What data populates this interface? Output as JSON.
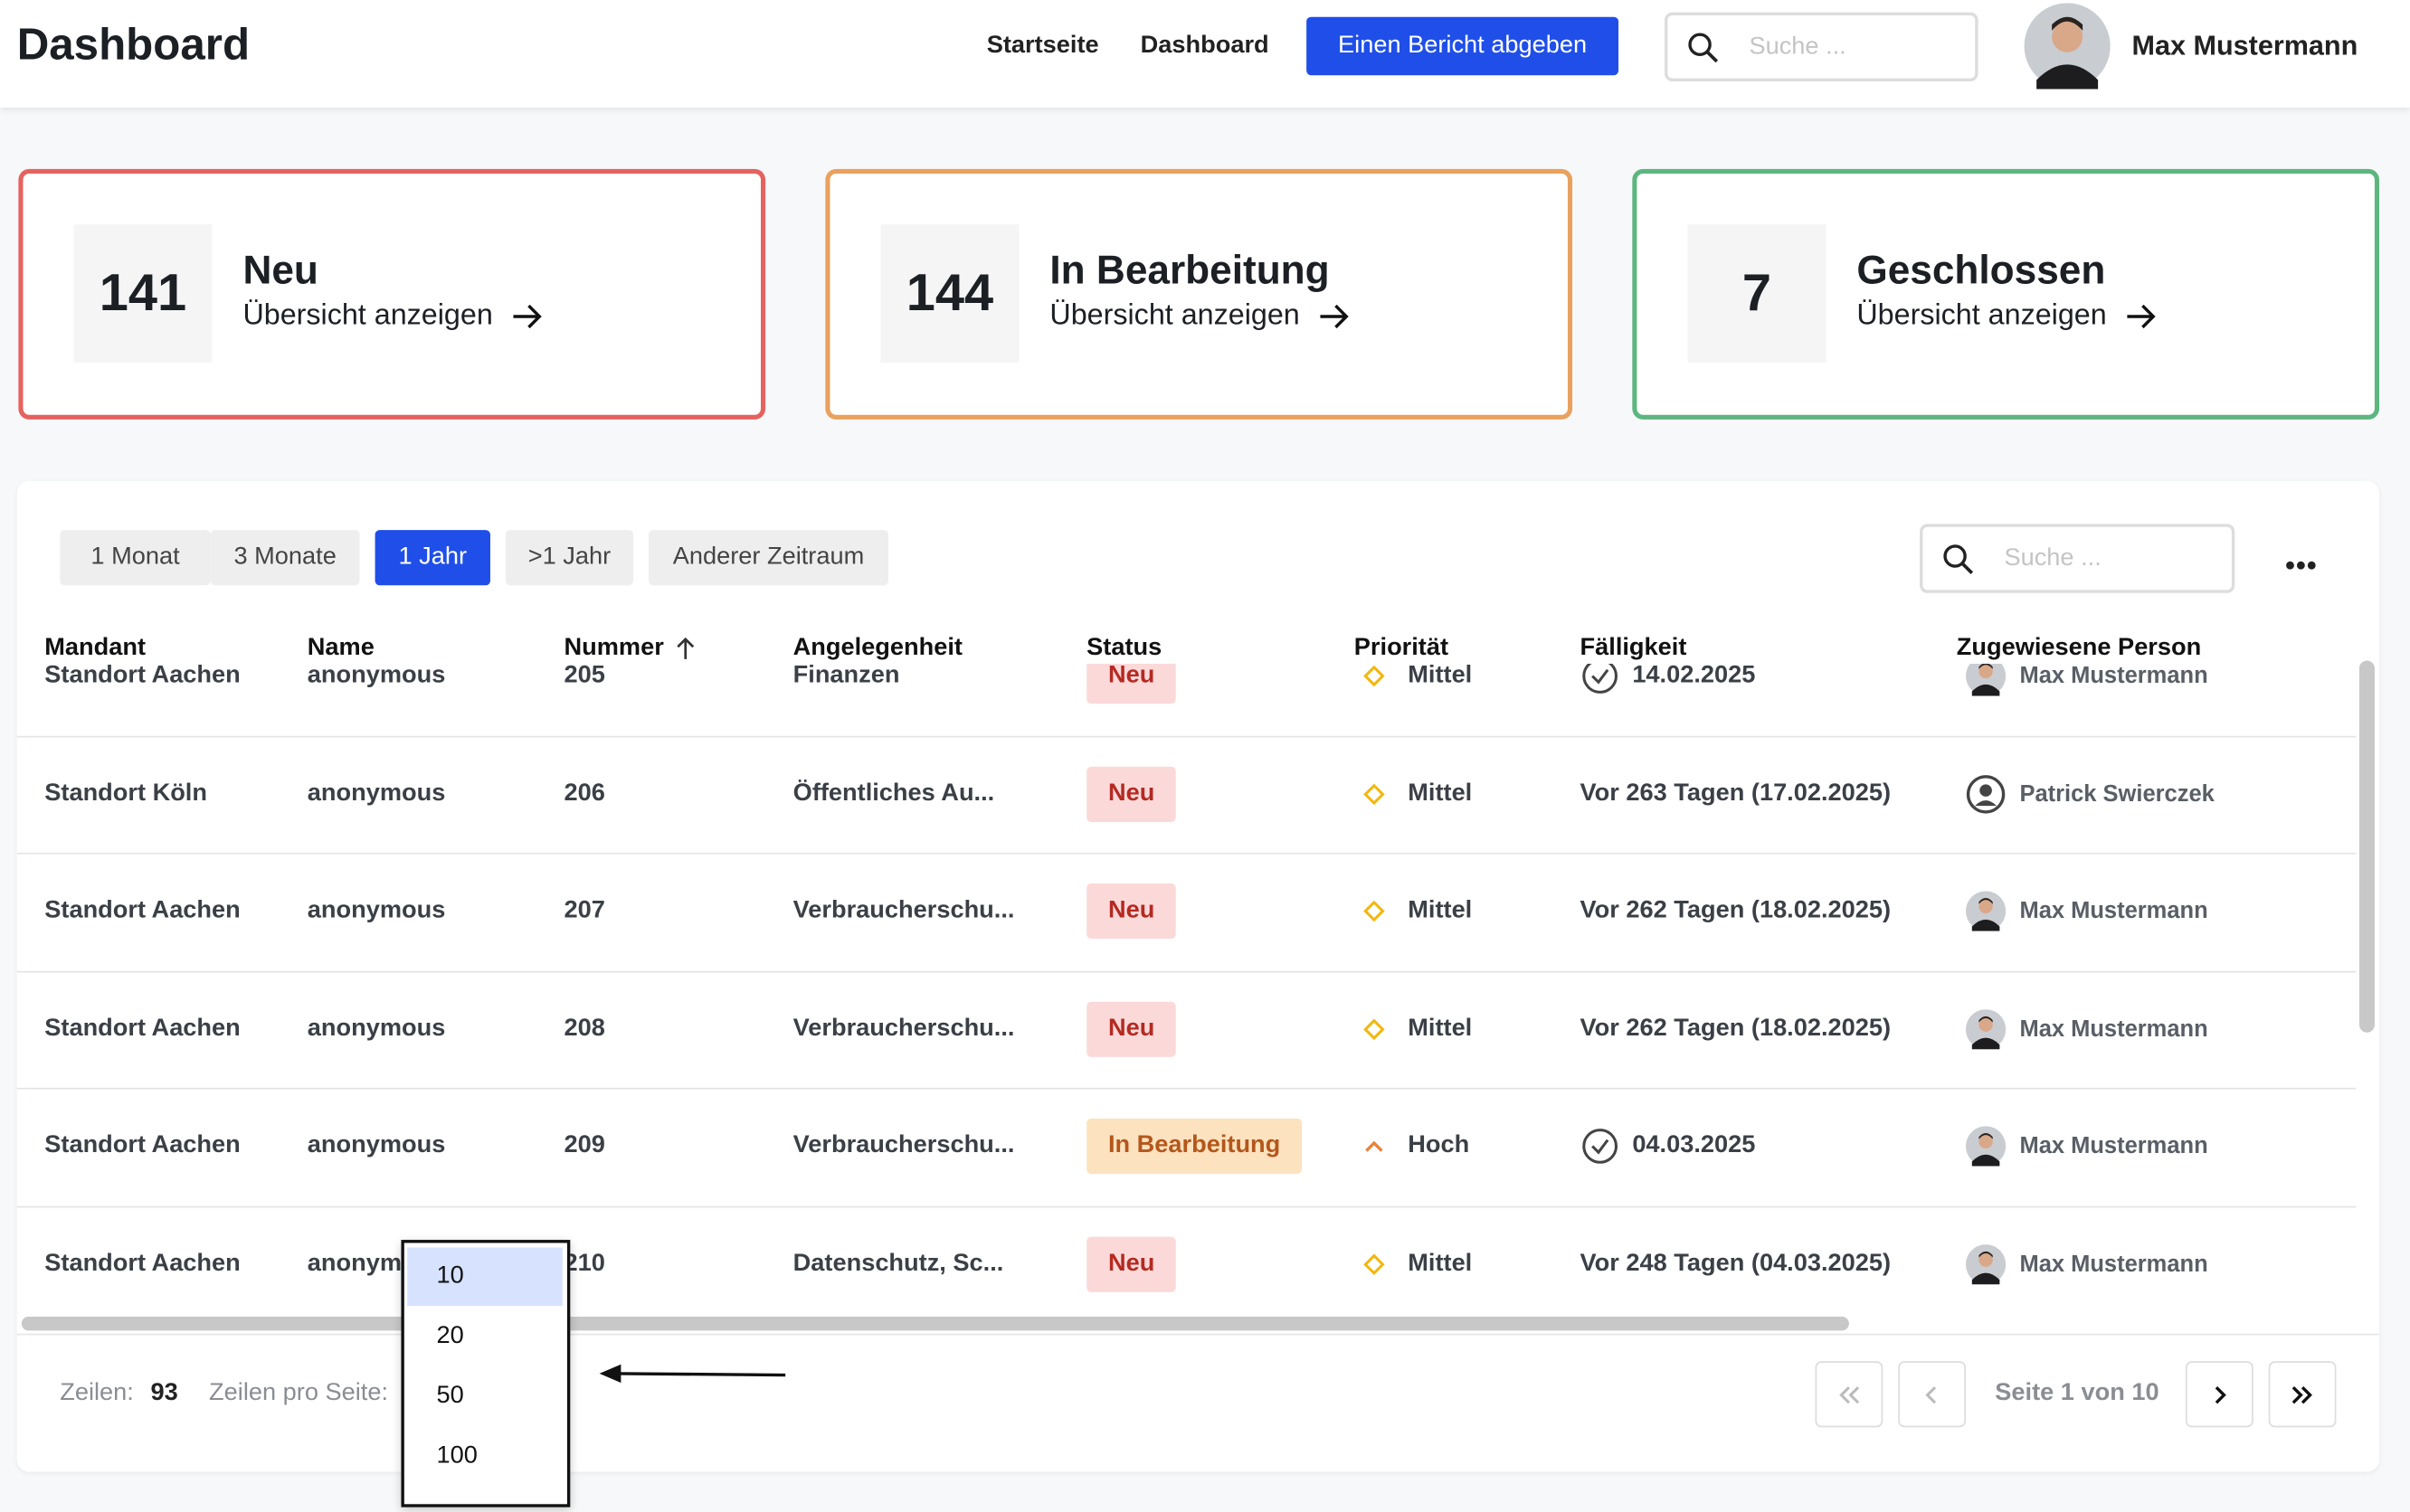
{
  "header": {
    "title": "Dashboard",
    "nav": [
      "Startseite",
      "Dashboard"
    ],
    "button": "Einen Bericht abgeben",
    "search_placeholder": "Suche ...",
    "user": "Max Mustermann"
  },
  "cards": [
    {
      "count": 141,
      "label": "Neu",
      "link": "Übersicht anzeigen",
      "color": "#e5625f"
    },
    {
      "count": 144,
      "label": "In Bearbeitung",
      "link": "Übersicht anzeigen",
      "color": "#e9a15e"
    },
    {
      "count": 7,
      "label": "Geschlossen",
      "link": "Übersicht anzeigen",
      "color": "#5db67f"
    }
  ],
  "filters": [
    "1 Monat",
    "3 Monate",
    "1 Jahr",
    ">1 Jahr",
    "Anderer Zeitraum"
  ],
  "active_filter": 2,
  "table_search_placeholder": "Suche ...",
  "table": {
    "columns": [
      "Mandant",
      "Name",
      "Nummer",
      "Angelegenheit",
      "Status",
      "Priorität",
      "Fälligkeit",
      "Zugewiesene Person"
    ],
    "rows": [
      [
        "Standort Aachen",
        "anonymous",
        "205",
        "Finanzen",
        "Neu",
        "Mittel",
        "14.02.2025",
        "Max Mustermann"
      ],
      [
        "Standort Köln",
        "anonymous",
        "206",
        "Öffentliches Au...",
        "Neu",
        "Mittel",
        "Vor 263 Tagen (17.02.2025)",
        "Patrick Swierczek"
      ],
      [
        "Standort Aachen",
        "anonymous",
        "207",
        "Verbraucherschu...",
        "Neu",
        "Mittel",
        "Vor 262 Tagen (18.02.2025)",
        "Max Mustermann"
      ],
      [
        "Standort Aachen",
        "anonymous",
        "208",
        "Verbraucherschu...",
        "Neu",
        "Mittel",
        "Vor 262 Tagen (18.02.2025)",
        "Max Mustermann"
      ],
      [
        "Standort Aachen",
        "anonymous",
        "209",
        "Verbraucherschu...",
        "In Bearbeitung",
        "Hoch",
        "04.03.2025",
        "Max Mustermann"
      ],
      [
        "Standort Aachen",
        "anonymous",
        "210",
        "Datenschutz, Sc...",
        "Neu",
        "Mittel",
        "Vor 248 Tagen (04.03.2025)",
        "Max Mustermann"
      ]
    ]
  },
  "footer": {
    "rows_label": "Zeilen:",
    "rows_count": 93,
    "per_page_label": "Zeilen pro Seite:",
    "per_page_options": [
      10,
      20,
      50,
      100
    ],
    "page_info": "Seite 1 von 10"
  }
}
